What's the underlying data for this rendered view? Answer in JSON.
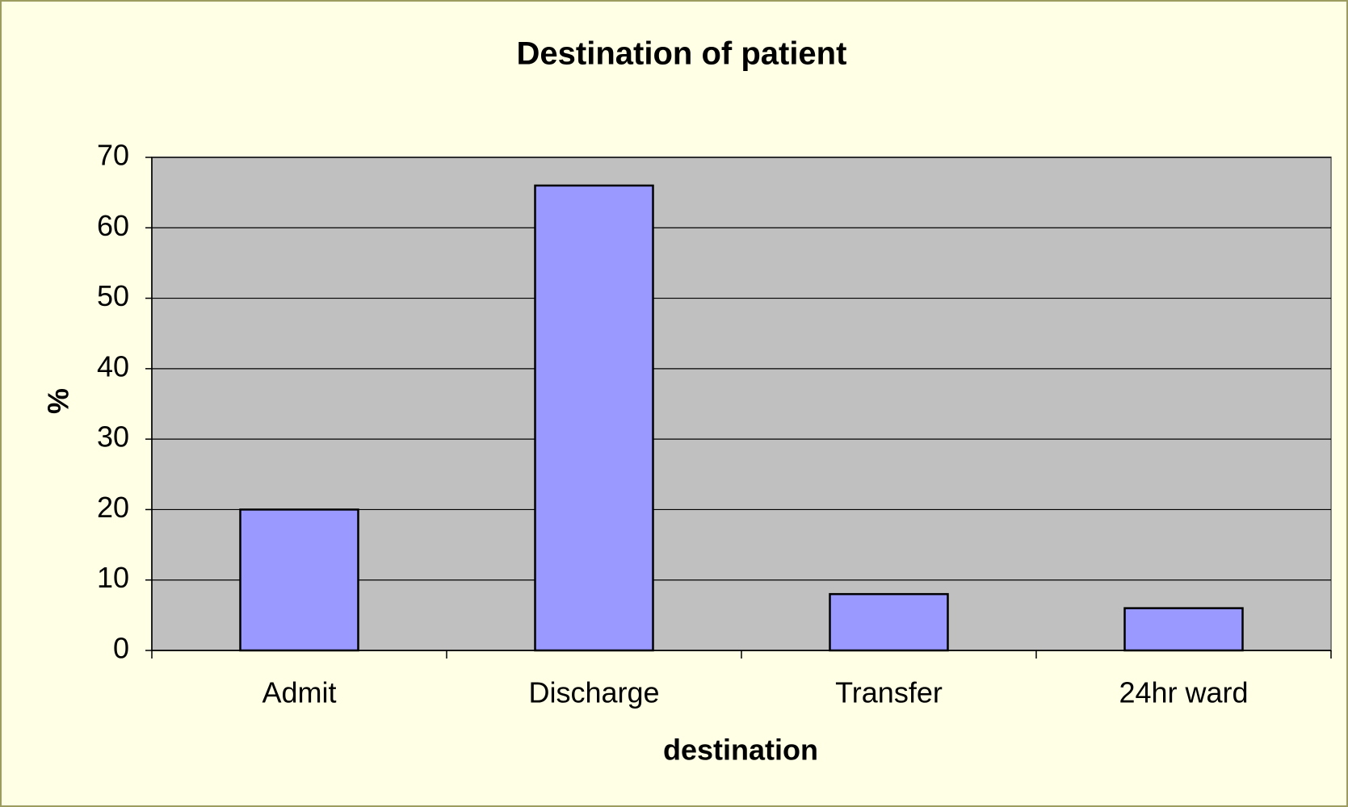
{
  "chart_data": {
    "type": "bar",
    "title": "Destination of patient",
    "x_label": "destination",
    "y_label": "%",
    "categories": [
      "Admit",
      "Discharge",
      "Transfer",
      "24hr ward"
    ],
    "values": [
      20,
      66,
      8,
      6
    ],
    "color": "#9999ff",
    "ylim": [
      0,
      70
    ],
    "yticks": [
      0,
      10,
      20,
      30,
      40,
      50,
      60,
      70
    ],
    "grid": true
  }
}
